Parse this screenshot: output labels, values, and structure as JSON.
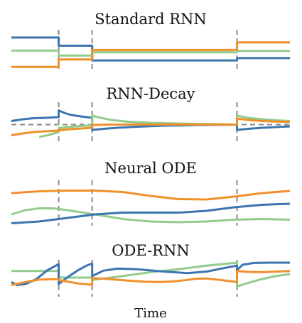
{
  "figure": {
    "x_label": "Time",
    "colors": {
      "blue": "#3b75af",
      "orange": "#f0902a",
      "green": "#92cc8c",
      "dashed": "#8a8a8a"
    }
  },
  "chart_data": [
    {
      "type": "line",
      "title": "Standard RNN",
      "observation_times": [
        0.17,
        0.29,
        0.81
      ],
      "series": [
        {
          "color": "#3b75af",
          "points": [
            [
              0,
              0.85
            ],
            [
              0.17,
              0.85
            ],
            [
              0.17,
              0.6
            ],
            [
              0.29,
              0.6
            ],
            [
              0.29,
              0.15
            ],
            [
              0.81,
              0.15
            ],
            [
              0.81,
              0.22
            ],
            [
              1,
              0.22
            ]
          ]
        },
        {
          "color": "#92cc8c",
          "points": [
            [
              0,
              0.45
            ],
            [
              0.17,
              0.45
            ],
            [
              0.17,
              0.3
            ],
            [
              0.29,
              0.3
            ],
            [
              0.29,
              0.4
            ],
            [
              0.81,
              0.4
            ],
            [
              0.81,
              0.44
            ],
            [
              1,
              0.44
            ]
          ]
        },
        {
          "color": "#f0902a",
          "points": [
            [
              0,
              -0.05
            ],
            [
              0.17,
              -0.05
            ],
            [
              0.17,
              0.18
            ],
            [
              0.29,
              0.18
            ],
            [
              0.29,
              0.47
            ],
            [
              0.81,
              0.47
            ],
            [
              0.81,
              0.7
            ],
            [
              1,
              0.7
            ]
          ]
        }
      ]
    },
    {
      "type": "line",
      "title": "RNN-Decay",
      "observation_times": [
        0.17,
        0.29,
        0.81
      ],
      "baseline": 0.45,
      "series": [
        {
          "color": "#3b75af",
          "points": [
            [
              0,
              0.55
            ],
            [
              0.04,
              0.6
            ],
            [
              0.08,
              0.63
            ],
            [
              0.12,
              0.64
            ],
            [
              0.17,
              0.66
            ],
            [
              0.17,
              0.85
            ],
            [
              0.19,
              0.78
            ],
            [
              0.21,
              0.73
            ],
            [
              0.24,
              0.69
            ],
            [
              0.27,
              0.66
            ],
            [
              0.29,
              0.64
            ],
            [
              0.29,
              0.3
            ],
            [
              0.33,
              0.33
            ],
            [
              0.38,
              0.36
            ],
            [
              0.45,
              0.39
            ],
            [
              0.55,
              0.42
            ],
            [
              0.65,
              0.435
            ],
            [
              0.75,
              0.445
            ],
            [
              0.81,
              0.447
            ],
            [
              0.81,
              0.3
            ],
            [
              0.85,
              0.33
            ],
            [
              0.9,
              0.36
            ],
            [
              0.95,
              0.38
            ],
            [
              1,
              0.4
            ]
          ]
        },
        {
          "color": "#92cc8c",
          "points": [
            [
              0.1,
              0.1
            ],
            [
              0.13,
              0.15
            ],
            [
              0.17,
              0.24
            ],
            [
              0.17,
              0.35
            ],
            [
              0.2,
              0.38
            ],
            [
              0.25,
              0.41
            ],
            [
              0.29,
              0.43
            ],
            [
              0.29,
              0.7
            ],
            [
              0.32,
              0.64
            ],
            [
              0.36,
              0.58
            ],
            [
              0.42,
              0.53
            ],
            [
              0.5,
              0.5
            ],
            [
              0.6,
              0.48
            ],
            [
              0.7,
              0.465
            ],
            [
              0.81,
              0.457
            ],
            [
              0.81,
              0.7
            ],
            [
              0.85,
              0.64
            ],
            [
              0.9,
              0.6
            ],
            [
              0.95,
              0.57
            ],
            [
              1,
              0.55
            ]
          ]
        },
        {
          "color": "#f0902a",
          "points": [
            [
              0,
              0.15
            ],
            [
              0.04,
              0.2
            ],
            [
              0.08,
              0.24
            ],
            [
              0.12,
              0.26
            ],
            [
              0.17,
              0.28
            ],
            [
              0.17,
              0.29
            ],
            [
              0.21,
              0.32
            ],
            [
              0.25,
              0.34
            ],
            [
              0.29,
              0.36
            ],
            [
              0.29,
              0.44
            ],
            [
              0.35,
              0.45
            ],
            [
              0.45,
              0.452
            ],
            [
              0.6,
              0.451
            ],
            [
              0.81,
              0.45
            ],
            [
              0.81,
              0.62
            ],
            [
              0.85,
              0.58
            ],
            [
              0.9,
              0.55
            ],
            [
              0.95,
              0.535
            ],
            [
              1,
              0.525
            ]
          ]
        }
      ]
    },
    {
      "type": "line",
      "title": "Neural ODE",
      "observation_times": [
        0.17,
        0.29,
        0.81
      ],
      "series": [
        {
          "color": "#f0902a",
          "points": [
            [
              0,
              0.8
            ],
            [
              0.1,
              0.85
            ],
            [
              0.2,
              0.87
            ],
            [
              0.3,
              0.87
            ],
            [
              0.4,
              0.83
            ],
            [
              0.5,
              0.72
            ],
            [
              0.6,
              0.63
            ],
            [
              0.7,
              0.62
            ],
            [
              0.8,
              0.7
            ],
            [
              0.9,
              0.8
            ],
            [
              1,
              0.86
            ]
          ]
        },
        {
          "color": "#92cc8c",
          "points": [
            [
              0,
              0.2
            ],
            [
              0.05,
              0.32
            ],
            [
              0.1,
              0.37
            ],
            [
              0.15,
              0.37
            ],
            [
              0.2,
              0.32
            ],
            [
              0.3,
              0.2
            ],
            [
              0.4,
              0.07
            ],
            [
              0.5,
              0.0
            ],
            [
              0.6,
              -0.02
            ],
            [
              0.7,
              0.0
            ],
            [
              0.8,
              0.05
            ],
            [
              0.9,
              0.07
            ],
            [
              1,
              0.05
            ]
          ]
        },
        {
          "color": "#3b75af",
          "points": [
            [
              0,
              -0.05
            ],
            [
              0.1,
              0.0
            ],
            [
              0.2,
              0.1
            ],
            [
              0.3,
              0.2
            ],
            [
              0.4,
              0.25
            ],
            [
              0.5,
              0.25
            ],
            [
              0.6,
              0.25
            ],
            [
              0.7,
              0.3
            ],
            [
              0.8,
              0.4
            ],
            [
              0.9,
              0.47
            ],
            [
              1,
              0.5
            ]
          ]
        }
      ]
    },
    {
      "type": "line",
      "title": "ODE-RNN",
      "observation_times": [
        0.17,
        0.29,
        0.81
      ],
      "series": [
        {
          "color": "#92cc8c",
          "points": [
            [
              0,
              0.72
            ],
            [
              0.17,
              0.72
            ],
            [
              0.17,
              0.5
            ],
            [
              0.29,
              0.5
            ],
            [
              0.29,
              0.42
            ],
            [
              0.4,
              0.55
            ],
            [
              0.5,
              0.68
            ],
            [
              0.6,
              0.78
            ],
            [
              0.7,
              0.9
            ],
            [
              0.81,
              1.0
            ],
            [
              0.81,
              0.2
            ],
            [
              0.85,
              0.32
            ],
            [
              0.9,
              0.45
            ],
            [
              0.95,
              0.55
            ],
            [
              1,
              0.62
            ]
          ]
        },
        {
          "color": "#3b75af",
          "points": [
            [
              0,
              0.35
            ],
            [
              0.02,
              0.25
            ],
            [
              0.05,
              0.28
            ],
            [
              0.09,
              0.45
            ],
            [
              0.13,
              0.75
            ],
            [
              0.17,
              0.95
            ],
            [
              0.17,
              0.28
            ],
            [
              0.2,
              0.5
            ],
            [
              0.24,
              0.75
            ],
            [
              0.27,
              0.9
            ],
            [
              0.29,
              0.97
            ],
            [
              0.29,
              0.55
            ],
            [
              0.33,
              0.73
            ],
            [
              0.38,
              0.8
            ],
            [
              0.45,
              0.78
            ],
            [
              0.55,
              0.7
            ],
            [
              0.63,
              0.65
            ],
            [
              0.7,
              0.7
            ],
            [
              0.78,
              0.85
            ],
            [
              0.81,
              0.9
            ],
            [
              0.81,
              0.75
            ],
            [
              0.83,
              0.93
            ],
            [
              0.87,
              0.99
            ],
            [
              0.93,
              1.0
            ],
            [
              1,
              1.0
            ]
          ]
        },
        {
          "color": "#f0902a",
          "points": [
            [
              0,
              0.25
            ],
            [
              0.05,
              0.35
            ],
            [
              0.1,
              0.43
            ],
            [
              0.17,
              0.45
            ],
            [
              0.17,
              0.42
            ],
            [
              0.21,
              0.35
            ],
            [
              0.25,
              0.29
            ],
            [
              0.29,
              0.26
            ],
            [
              0.29,
              0.48
            ],
            [
              0.35,
              0.45
            ],
            [
              0.42,
              0.4
            ],
            [
              0.48,
              0.36
            ],
            [
              0.53,
              0.35
            ],
            [
              0.58,
              0.37
            ],
            [
              0.63,
              0.42
            ],
            [
              0.66,
              0.46
            ],
            [
              0.7,
              0.47
            ],
            [
              0.75,
              0.42
            ],
            [
              0.81,
              0.35
            ],
            [
              0.81,
              0.72
            ],
            [
              0.85,
              0.69
            ],
            [
              0.9,
              0.68
            ],
            [
              0.95,
              0.7
            ],
            [
              1,
              0.72
            ]
          ]
        }
      ]
    }
  ]
}
